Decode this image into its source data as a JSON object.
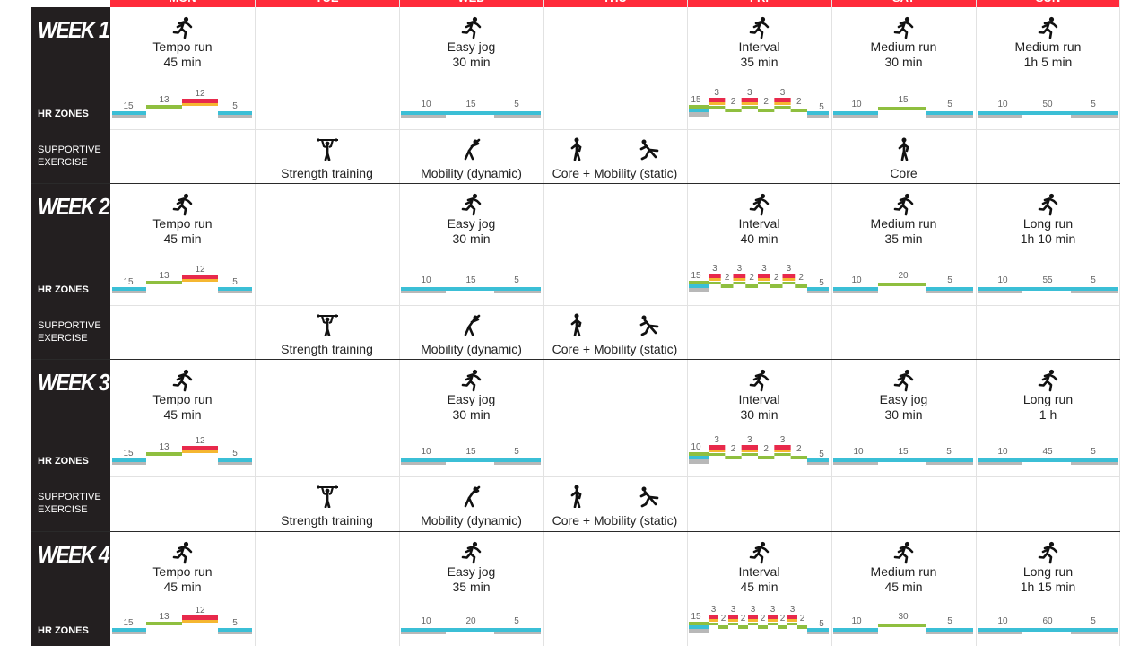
{
  "days": [
    "MON",
    "TUE",
    "WED",
    "THU",
    "FRI",
    "SAT",
    "SUN"
  ],
  "labels": {
    "hr_zones": "HR ZONES",
    "supportive": [
      "SUPPORTIVE",
      "EXERCISE"
    ]
  },
  "colors": {
    "header": "#ff2a3a",
    "sidebar": "#231f20",
    "zone1": "#3bbfd6",
    "zone1_base": "#b8b8b8",
    "zone2": "#8fbf3f",
    "zone3_top": "#e8294b",
    "zone3_bottom": "#f5b731"
  },
  "icons": {
    "run": "runner-icon",
    "strength": "pull-up-icon",
    "mobility_dynamic": "stretch-icon",
    "core": "core-icon",
    "mobility_static": "lunge-stretch-icon"
  },
  "weeks": [
    {
      "title": "WEEK 1",
      "runs": [
        {
          "day": 0,
          "title": "Tempo run",
          "duration": "45 min",
          "zones": {
            "type": "tempo",
            "labels": [
              "15",
              "13",
              "12",
              "5"
            ]
          }
        },
        {
          "day": 2,
          "title": "Easy jog",
          "duration": "30 min",
          "zones": {
            "type": "flat",
            "labels": [
              "10",
              "15",
              "5"
            ]
          }
        },
        {
          "day": 4,
          "title": "Interval",
          "duration": "35 min",
          "zones": {
            "type": "interval",
            "reps": 3,
            "labels": {
              "warm": "15",
              "hard": "3",
              "rest": "2",
              "cool": "5"
            }
          }
        },
        {
          "day": 5,
          "title": "Medium run",
          "duration": "30 min",
          "zones": {
            "type": "medium",
            "labels": [
              "10",
              "15",
              "5"
            ]
          }
        },
        {
          "day": 6,
          "title": "Medium run",
          "duration": "1h 5 min",
          "zones": {
            "type": "flat",
            "labels": [
              "10",
              "50",
              "5"
            ]
          }
        }
      ],
      "supportive": [
        {
          "day": 1,
          "items": [
            {
              "icon": "strength",
              "label": "Strength training"
            }
          ]
        },
        {
          "day": 2,
          "items": [
            {
              "icon": "mobility_dynamic",
              "label": "Mobility (dynamic)"
            }
          ]
        },
        {
          "day": 3,
          "items": [
            {
              "icon": "core",
              "label": "Core + Mobility (static)"
            }
          ]
        },
        {
          "day": 5,
          "items": [
            {
              "icon": "core",
              "label": "Core"
            }
          ]
        }
      ]
    },
    {
      "title": "WEEK 2",
      "runs": [
        {
          "day": 0,
          "title": "Tempo run",
          "duration": "45 min",
          "zones": {
            "type": "tempo",
            "labels": [
              "15",
              "13",
              "12",
              "5"
            ]
          }
        },
        {
          "day": 2,
          "title": "Easy jog",
          "duration": "30 min",
          "zones": {
            "type": "flat",
            "labels": [
              "10",
              "15",
              "5"
            ]
          }
        },
        {
          "day": 4,
          "title": "Interval",
          "duration": "40 min",
          "zones": {
            "type": "interval",
            "reps": 4,
            "labels": {
              "warm": "15",
              "hard": "3",
              "rest": "2",
              "cool": "5"
            }
          }
        },
        {
          "day": 5,
          "title": "Medium run",
          "duration": "35 min",
          "zones": {
            "type": "medium",
            "labels": [
              "10",
              "20",
              "5"
            ]
          }
        },
        {
          "day": 6,
          "title": "Long run",
          "duration": "1h 10 min",
          "zones": {
            "type": "flat",
            "labels": [
              "10",
              "55",
              "5"
            ]
          }
        }
      ],
      "supportive": [
        {
          "day": 1,
          "items": [
            {
              "icon": "strength",
              "label": "Strength training"
            }
          ]
        },
        {
          "day": 2,
          "items": [
            {
              "icon": "mobility_dynamic",
              "label": "Mobility (dynamic)"
            }
          ]
        },
        {
          "day": 3,
          "items": [
            {
              "icon": "core",
              "label": "Core + Mobility (static)"
            }
          ]
        }
      ]
    },
    {
      "title": "WEEK 3",
      "runs": [
        {
          "day": 0,
          "title": "Tempo run",
          "duration": "45 min",
          "zones": {
            "type": "tempo",
            "labels": [
              "15",
              "13",
              "12",
              "5"
            ]
          }
        },
        {
          "day": 2,
          "title": "Easy jog",
          "duration": "30 min",
          "zones": {
            "type": "flat",
            "labels": [
              "10",
              "15",
              "5"
            ]
          }
        },
        {
          "day": 4,
          "title": "Interval",
          "duration": "30 min",
          "zones": {
            "type": "interval",
            "reps": 3,
            "labels": {
              "warm": "10",
              "hard": "3",
              "rest": "2",
              "cool": "5"
            }
          }
        },
        {
          "day": 5,
          "title": "Easy jog",
          "duration": "30 min",
          "zones": {
            "type": "flat",
            "labels": [
              "10",
              "15",
              "5"
            ]
          }
        },
        {
          "day": 6,
          "title": "Long run",
          "duration": "1 h",
          "zones": {
            "type": "flat",
            "labels": [
              "10",
              "45",
              "5"
            ]
          }
        }
      ],
      "supportive": [
        {
          "day": 1,
          "items": [
            {
              "icon": "strength",
              "label": "Strength training"
            }
          ]
        },
        {
          "day": 2,
          "items": [
            {
              "icon": "mobility_dynamic",
              "label": "Mobility (dynamic)"
            }
          ]
        },
        {
          "day": 3,
          "items": [
            {
              "icon": "core",
              "label": "Core + Mobility (static)"
            }
          ]
        }
      ]
    },
    {
      "title": "WEEK 4",
      "runs": [
        {
          "day": 0,
          "title": "Tempo run",
          "duration": "45 min",
          "zones": {
            "type": "tempo",
            "labels": [
              "15",
              "13",
              "12",
              "5"
            ]
          }
        },
        {
          "day": 2,
          "title": "Easy jog",
          "duration": "35 min",
          "zones": {
            "type": "flat",
            "labels": [
              "10",
              "20",
              "5"
            ]
          }
        },
        {
          "day": 4,
          "title": "Interval",
          "duration": "45 min",
          "zones": {
            "type": "interval",
            "reps": 5,
            "labels": {
              "warm": "15",
              "hard": "3",
              "rest": "2",
              "cool": "5"
            }
          }
        },
        {
          "day": 5,
          "title": "Medium run",
          "duration": "45 min",
          "zones": {
            "type": "medium",
            "labels": [
              "10",
              "30",
              "5"
            ]
          }
        },
        {
          "day": 6,
          "title": "Long run",
          "duration": "1h 15 min",
          "zones": {
            "type": "flat",
            "labels": [
              "10",
              "60",
              "5"
            ]
          }
        }
      ],
      "supportive": []
    }
  ]
}
